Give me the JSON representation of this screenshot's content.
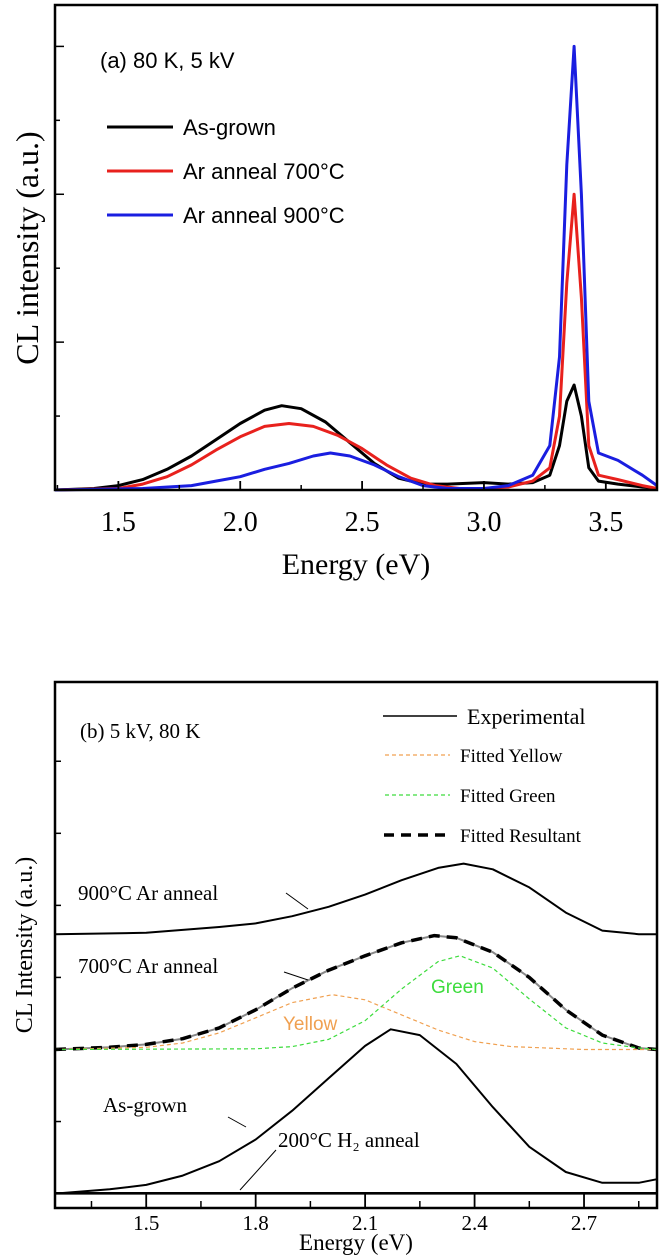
{
  "chart_data": [
    {
      "type": "line",
      "title": "(a) 80 K, 5 kV",
      "xlabel": "Energy (eV)",
      "ylabel": "CL intensity (a.u.)",
      "xlim": [
        1.24,
        3.71
      ],
      "ylim": [
        0,
        3.28
      ],
      "xticks": [
        1.5,
        2.0,
        2.5,
        3.0,
        3.5
      ],
      "xtick_labels": [
        "1.5",
        "2.0",
        "2.5",
        "3.0",
        "3.5"
      ],
      "yticks_unlabeled": true,
      "grid": false,
      "legend_position": "top-left",
      "series": [
        {
          "name": "As-grown",
          "color": "#000000",
          "x": [
            1.24,
            1.4,
            1.5,
            1.6,
            1.7,
            1.8,
            1.9,
            2.0,
            2.1,
            2.17,
            2.25,
            2.35,
            2.45,
            2.55,
            2.65,
            2.75,
            2.85,
            3.0,
            3.1,
            3.2,
            3.27,
            3.31,
            3.34,
            3.37,
            3.4,
            3.43,
            3.47,
            3.55,
            3.65,
            3.71
          ],
          "y": [
            0,
            0.01,
            0.03,
            0.07,
            0.14,
            0.23,
            0.34,
            0.45,
            0.54,
            0.57,
            0.55,
            0.46,
            0.32,
            0.18,
            0.08,
            0.04,
            0.04,
            0.05,
            0.04,
            0.05,
            0.1,
            0.3,
            0.6,
            0.71,
            0.5,
            0.15,
            0.06,
            0.04,
            0.02,
            0.01
          ]
        },
        {
          "name": "Ar anneal 700°C",
          "color": "#e8211d",
          "x": [
            1.24,
            1.5,
            1.6,
            1.7,
            1.8,
            1.9,
            2.0,
            2.1,
            2.2,
            2.3,
            2.4,
            2.5,
            2.6,
            2.7,
            2.8,
            2.9,
            3.0,
            3.1,
            3.2,
            3.27,
            3.31,
            3.34,
            3.37,
            3.4,
            3.43,
            3.47,
            3.55,
            3.65,
            3.71
          ],
          "y": [
            0,
            0.01,
            0.04,
            0.09,
            0.17,
            0.27,
            0.36,
            0.43,
            0.45,
            0.43,
            0.37,
            0.28,
            0.17,
            0.08,
            0.03,
            0.01,
            0.01,
            0.02,
            0.06,
            0.15,
            0.5,
            1.4,
            2.0,
            1.3,
            0.3,
            0.1,
            0.07,
            0.03,
            0.01
          ]
        },
        {
          "name": "Ar anneal 900°C",
          "color": "#1a1ee0",
          "x": [
            1.24,
            1.6,
            1.8,
            1.9,
            2.0,
            2.1,
            2.2,
            2.3,
            2.37,
            2.45,
            2.55,
            2.65,
            2.75,
            2.85,
            3.0,
            3.1,
            3.2,
            3.27,
            3.31,
            3.34,
            3.37,
            3.4,
            3.43,
            3.47,
            3.55,
            3.65,
            3.71
          ],
          "y": [
            0,
            0.01,
            0.03,
            0.06,
            0.09,
            0.14,
            0.18,
            0.23,
            0.25,
            0.23,
            0.17,
            0.09,
            0.03,
            0.01,
            0.01,
            0.03,
            0.1,
            0.3,
            0.9,
            2.2,
            3.0,
            2.0,
            0.6,
            0.25,
            0.2,
            0.1,
            0.03
          ]
        }
      ]
    },
    {
      "type": "line",
      "title": "(b) 5 kV, 80 K",
      "xlabel": "Energy (eV)",
      "ylabel": "CL Intensity (a.u.)",
      "xlim": [
        1.25,
        2.9
      ],
      "ylim": [
        -0.2,
        7.1
      ],
      "xticks": [
        1.5,
        1.8,
        2.1,
        2.4,
        2.7
      ],
      "xtick_labels": [
        "1.5",
        "1.8",
        "2.1",
        "2.4",
        "2.7"
      ],
      "yticks_unlabeled": true,
      "grid": false,
      "legend_position": "top-right",
      "legend": [
        {
          "name": "Experimental",
          "color": "#000000",
          "style": "solid"
        },
        {
          "name": "Fitted Yellow",
          "color": "#f0a050",
          "style": "dashed"
        },
        {
          "name": "Fitted Green",
          "color": "#3ddc3d",
          "style": "dashed"
        },
        {
          "name": "Fitted Resultant",
          "color": "#000000",
          "style": "bold-dashed"
        }
      ],
      "series": [
        {
          "name": "900°C Ar anneal",
          "kind": "Experimental",
          "color": "#000000",
          "x": [
            1.25,
            1.5,
            1.7,
            1.8,
            1.9,
            2.0,
            2.1,
            2.2,
            2.3,
            2.37,
            2.45,
            2.55,
            2.65,
            2.75,
            2.85,
            2.9
          ],
          "y": [
            3.6,
            3.62,
            3.7,
            3.75,
            3.85,
            3.98,
            4.15,
            4.35,
            4.52,
            4.58,
            4.5,
            4.25,
            3.9,
            3.65,
            3.6,
            3.6
          ]
        },
        {
          "name": "700°C Ar anneal",
          "kind": "Experimental",
          "color": "#888888",
          "x": [
            1.25,
            1.4,
            1.5,
            1.6,
            1.7,
            1.8,
            1.9,
            2.0,
            2.1,
            2.2,
            2.29,
            2.35,
            2.45,
            2.55,
            2.65,
            2.75,
            2.85,
            2.9
          ],
          "y": [
            2.0,
            2.03,
            2.07,
            2.15,
            2.3,
            2.55,
            2.85,
            3.1,
            3.3,
            3.48,
            3.58,
            3.55,
            3.35,
            3.0,
            2.55,
            2.2,
            2.02,
            2.0
          ]
        },
        {
          "name": "Fitted Resultant",
          "kind": "Fitted Resultant",
          "color": "#000000",
          "x": [
            1.25,
            1.4,
            1.5,
            1.6,
            1.7,
            1.8,
            1.9,
            2.0,
            2.1,
            2.2,
            2.29,
            2.35,
            2.45,
            2.55,
            2.65,
            2.75,
            2.85,
            2.9
          ],
          "y": [
            2.0,
            2.03,
            2.07,
            2.15,
            2.3,
            2.55,
            2.85,
            3.1,
            3.3,
            3.48,
            3.58,
            3.55,
            3.35,
            3.0,
            2.55,
            2.2,
            2.02,
            2.0
          ]
        },
        {
          "name": "Fitted Yellow",
          "kind": "Fitted Yellow",
          "color": "#f0a050",
          "x": [
            1.25,
            1.5,
            1.6,
            1.7,
            1.8,
            1.9,
            2.01,
            2.1,
            2.2,
            2.3,
            2.4,
            2.5,
            2.7,
            2.9
          ],
          "y": [
            2.0,
            2.03,
            2.09,
            2.23,
            2.44,
            2.65,
            2.76,
            2.69,
            2.48,
            2.27,
            2.11,
            2.04,
            2.0,
            2.0
          ]
        },
        {
          "name": "Fitted Green",
          "kind": "Fitted Green",
          "color": "#3ddc3d",
          "x": [
            1.25,
            1.8,
            1.9,
            2.0,
            2.1,
            2.2,
            2.3,
            2.36,
            2.45,
            2.55,
            2.65,
            2.75,
            2.85,
            2.9
          ],
          "y": [
            2.0,
            2.01,
            2.04,
            2.14,
            2.4,
            2.84,
            3.22,
            3.3,
            3.13,
            2.7,
            2.3,
            2.09,
            2.02,
            2.0
          ]
        },
        {
          "name": "As-grown",
          "kind": "Experimental",
          "color": "#000000",
          "x": [
            1.25,
            1.4,
            1.5,
            1.6,
            1.7,
            1.8,
            1.9,
            2.0,
            2.1,
            2.17,
            2.25,
            2.35,
            2.45,
            2.55,
            2.65,
            2.75,
            2.85,
            2.9
          ],
          "y": [
            0,
            0.06,
            0.12,
            0.25,
            0.45,
            0.75,
            1.15,
            1.6,
            2.05,
            2.28,
            2.2,
            1.8,
            1.2,
            0.65,
            0.3,
            0.15,
            0.15,
            0.2
          ]
        },
        {
          "name": "200°C H₂ anneal",
          "kind": "Experimental",
          "color": "#000000",
          "x": [
            1.25,
            2.9
          ],
          "y": [
            0,
            0
          ]
        }
      ],
      "annotations": {
        "a900": "900°C Ar anneal",
        "a700": "700°C Ar anneal",
        "asgrown": "As-grown",
        "h2": "200°C H₂ anneal",
        "yellow": "Yellow",
        "green": "Green"
      }
    }
  ]
}
